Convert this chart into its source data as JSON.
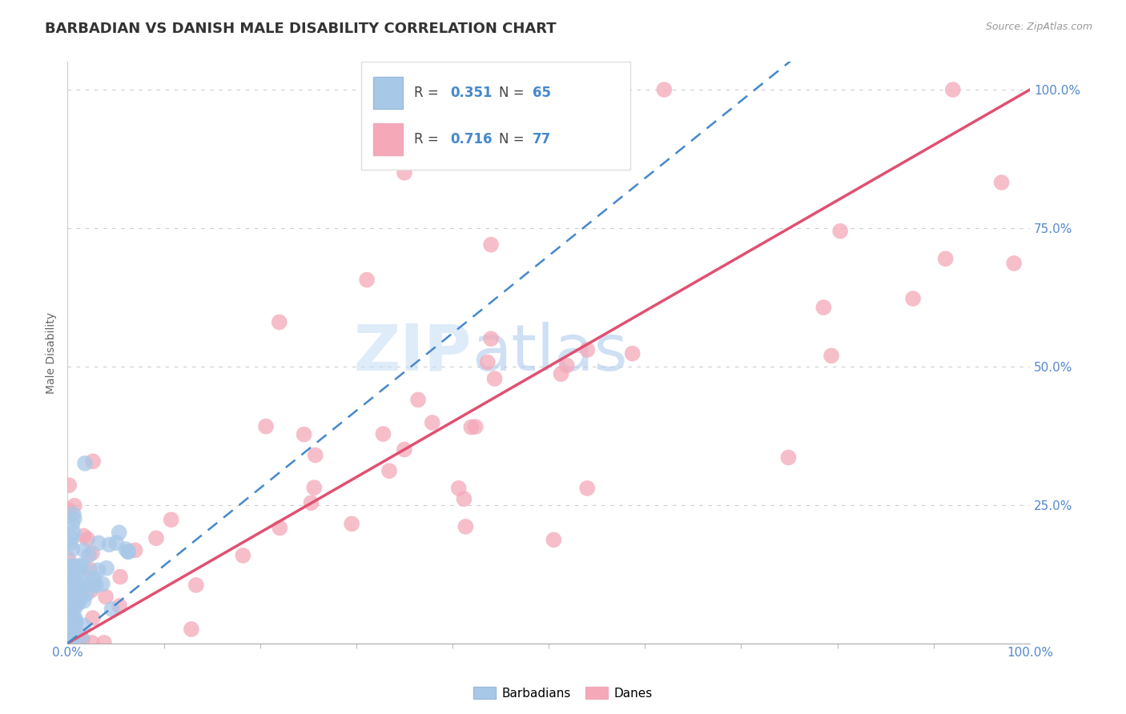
{
  "title": "BARBADIAN VS DANISH MALE DISABILITY CORRELATION CHART",
  "source_text": "Source: ZipAtlas.com",
  "ylabel": "Male Disability",
  "R_barbadian": 0.351,
  "N_barbadian": 65,
  "R_danish": 0.716,
  "N_danish": 77,
  "barbadian_color": "#a8c8e8",
  "danish_color": "#f4a8b8",
  "barbadian_line_color": "#4488cc",
  "danish_line_color": "#e05070",
  "watermark_zip": "ZIP",
  "watermark_atlas": "atlas",
  "watermark_color_zip": "#c8dff0",
  "watermark_color_atlas": "#b0cce8",
  "background_color": "#ffffff",
  "title_color": "#333333",
  "title_fontsize": 13,
  "grid_color": "#cccccc",
  "tick_color": "#5588cc",
  "source_color": "#999999"
}
